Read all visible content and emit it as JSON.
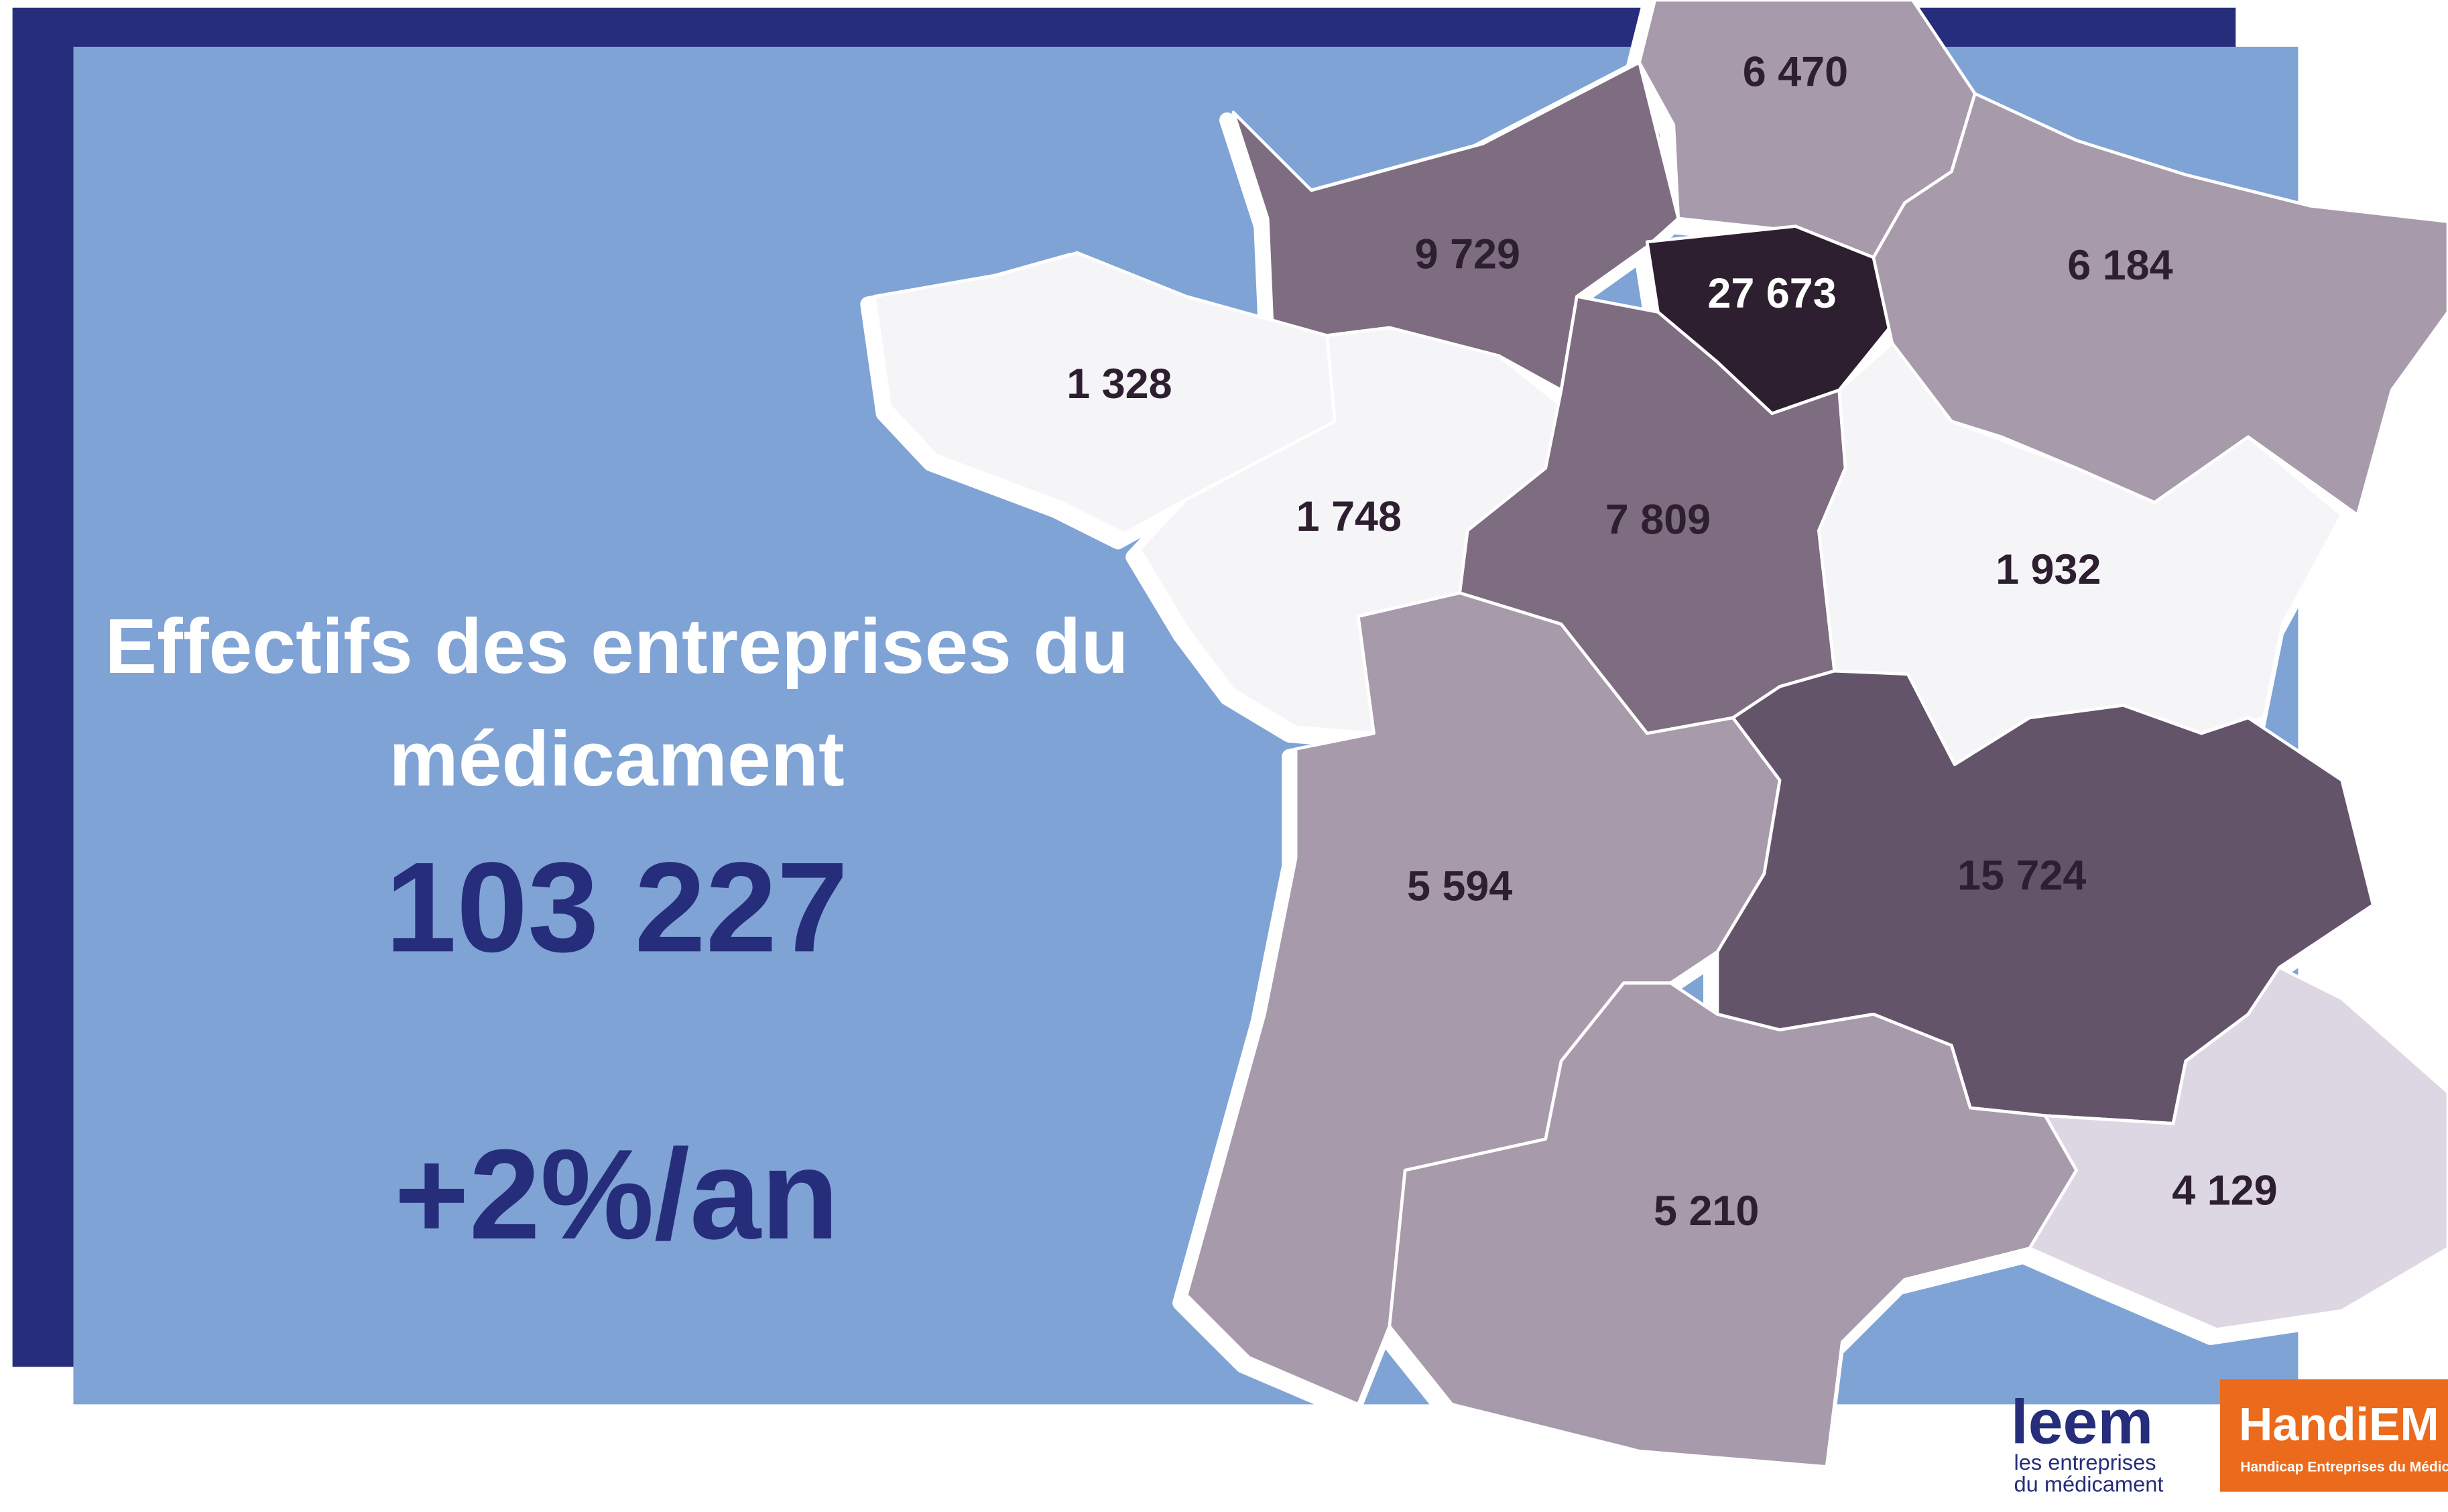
{
  "title": "Effectifs des entreprises du médicament",
  "total": "103 227",
  "growth": "+2%/an",
  "regions": [
    {
      "value": "6 470"
    },
    {
      "value": "9 729"
    },
    {
      "value": "27 673"
    },
    {
      "value": "6 184"
    },
    {
      "value": "1 328"
    },
    {
      "value": "1 748"
    },
    {
      "value": "7 809"
    },
    {
      "value": "1 932"
    },
    {
      "value": "5 594"
    },
    {
      "value": "15 724"
    },
    {
      "value": "5 210"
    },
    {
      "value": "4 129"
    }
  ],
  "logos": {
    "leem": "leem",
    "leem_tagline_1": "les entreprises",
    "leem_tagline_2": "du médicament",
    "handiem": "HandiEM",
    "handiem_tagline": "Handicap Entreprises du Médicament"
  }
}
